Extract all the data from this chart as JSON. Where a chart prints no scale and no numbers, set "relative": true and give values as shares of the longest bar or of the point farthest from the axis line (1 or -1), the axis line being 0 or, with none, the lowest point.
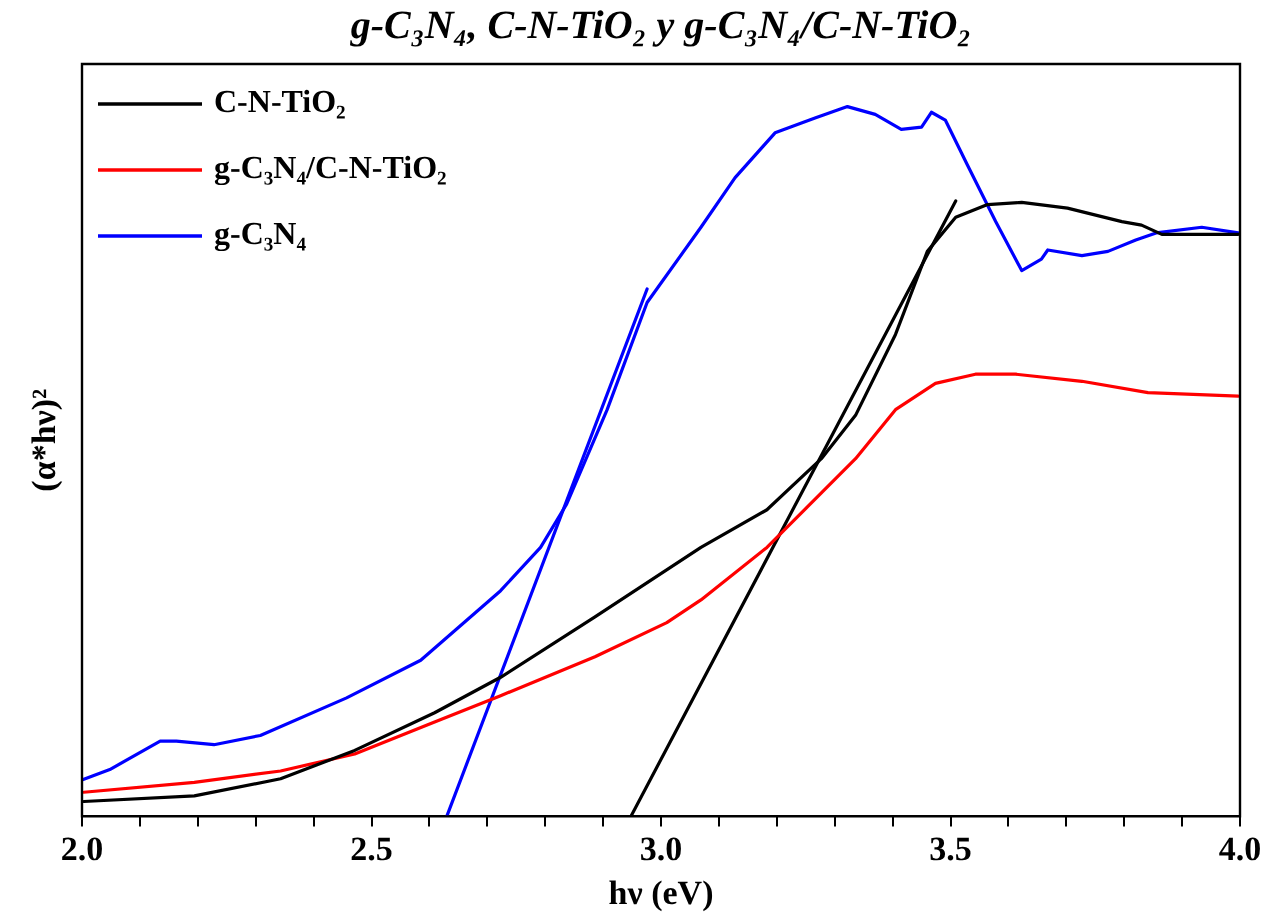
{
  "chart_data": {
    "type": "line",
    "title": "g-C₃N₄, C-N-TiO₂ y g-C₃N₄/C-N-TiO₂",
    "xlabel": "hν (eV)",
    "ylabel": "(α*hν)²",
    "relative": true,
    "legend": "top left",
    "grid": false,
    "marker": "none",
    "line_style": "solid",
    "xlim": [
      2,
      4
    ],
    "xticks": [
      {
        "value": 2,
        "label": "2.0"
      },
      {
        "value": 2.1,
        "label": null
      },
      {
        "value": 2.2,
        "label": null
      },
      {
        "value": 2.3,
        "label": null
      },
      {
        "value": 2.4,
        "label": null
      },
      {
        "value": 2.5,
        "label": "2.5"
      },
      {
        "value": 2.6,
        "label": null
      },
      {
        "value": 2.7,
        "label": null
      },
      {
        "value": 2.8,
        "label": null
      },
      {
        "value": 2.9,
        "label": null
      },
      {
        "value": 3,
        "label": "3.0"
      },
      {
        "value": 3.1,
        "label": null
      },
      {
        "value": 3.2,
        "label": null
      },
      {
        "value": 3.3,
        "label": null
      },
      {
        "value": 3.4,
        "label": null
      },
      {
        "value": 3.5,
        "label": "3.5"
      },
      {
        "value": 3.6,
        "label": null
      },
      {
        "value": 3.7,
        "label": null
      },
      {
        "value": 3.8,
        "label": null
      },
      {
        "value": 3.9,
        "label": null
      },
      {
        "value": 4,
        "label": "4.0"
      }
    ],
    "series": [
      {
        "name": "C-N-TiO₂",
        "color": "#000000",
        "x": [
          2.003,
          2.194,
          2.343,
          2.471,
          2.609,
          2.723,
          2.886,
          3.069,
          3.183,
          3.277,
          3.336,
          3.405,
          3.46,
          3.509,
          3.564,
          3.623,
          3.702,
          3.796,
          3.83,
          3.865,
          3.997
        ],
        "values": [
          0.021,
          0.029,
          0.053,
          0.093,
          0.146,
          0.196,
          0.281,
          0.379,
          0.432,
          0.504,
          0.565,
          0.679,
          0.796,
          0.844,
          0.862,
          0.865,
          0.857,
          0.838,
          0.833,
          0.82,
          0.82
        ]
      },
      {
        "name": "g-C₃N₄/C-N-TiO₂",
        "color": "#ff0000",
        "x": [
          2.003,
          2.194,
          2.343,
          2.471,
          2.609,
          2.723,
          2.886,
          3.01,
          3.069,
          3.183,
          3.336,
          3.405,
          3.474,
          3.543,
          3.612,
          3.727,
          3.841,
          3.997
        ],
        "values": [
          0.034,
          0.048,
          0.064,
          0.088,
          0.133,
          0.17,
          0.225,
          0.273,
          0.305,
          0.379,
          0.504,
          0.573,
          0.61,
          0.623,
          0.623,
          0.613,
          0.597,
          0.592
        ]
      },
      {
        "name": "g-C₃N₄",
        "color": "#0000ff",
        "x": [
          2.002,
          2.048,
          2.135,
          2.163,
          2.228,
          2.308,
          2.457,
          2.585,
          2.723,
          2.792,
          2.837,
          2.907,
          2.976,
          3.069,
          3.128,
          3.197,
          3.266,
          3.322,
          3.37,
          3.415,
          3.45,
          3.467,
          3.491,
          3.529,
          3.578,
          3.623,
          3.657,
          3.668,
          3.727,
          3.772,
          3.82,
          3.855,
          3.934,
          3.997
        ],
        "values": [
          0.052,
          0.066,
          0.106,
          0.106,
          0.101,
          0.114,
          0.167,
          0.22,
          0.318,
          0.379,
          0.44,
          0.573,
          0.724,
          0.83,
          0.9,
          0.963,
          0.984,
          1.0,
          0.989,
          0.968,
          0.971,
          0.992,
          0.981,
          0.918,
          0.838,
          0.769,
          0.785,
          0.798,
          0.79,
          0.796,
          0.812,
          0.822,
          0.83,
          0.822
        ]
      },
      {
        "type": "line",
        "color": "#0000ff",
        "x": [
          2.63,
          2.976
        ],
        "values": [
          0,
          0.743
        ]
      },
      {
        "type": "line",
        "color": "#000000",
        "x": [
          2.948,
          3.509
        ],
        "values": [
          0,
          0.867
        ]
      }
    ]
  }
}
